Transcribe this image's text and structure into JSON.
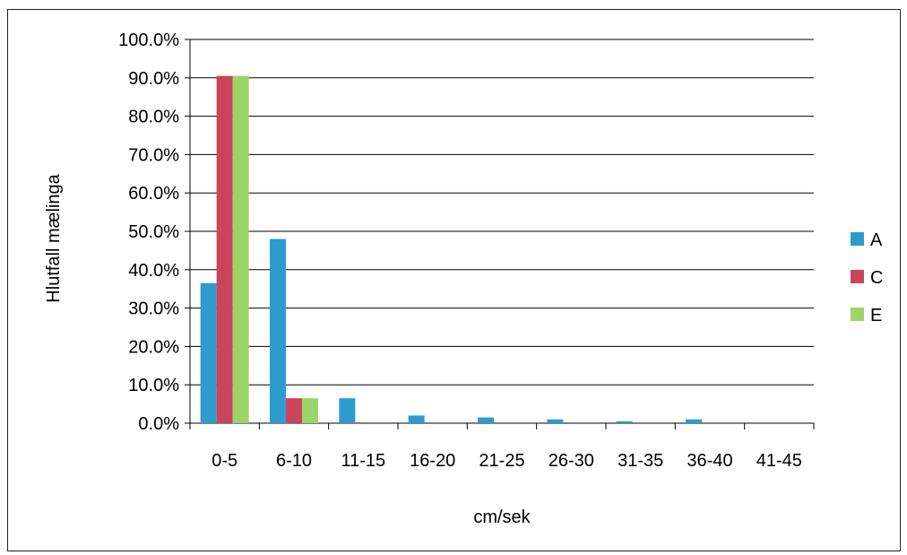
{
  "chart_data": {
    "type": "bar",
    "title": "",
    "xlabel": "cm/sek",
    "ylabel": "Hlutfall mælinga",
    "categories": [
      "0-5",
      "6-10",
      "11-15",
      "16-20",
      "21-25",
      "26-30",
      "31-35",
      "36-40",
      "41-45"
    ],
    "series": [
      {
        "name": "A",
        "color": "#2E9BD0",
        "values": [
          36.5,
          48.0,
          6.5,
          2.0,
          1.5,
          1.0,
          0.5,
          1.0,
          0.0
        ]
      },
      {
        "name": "C",
        "color": "#C8455A",
        "values": [
          90.5,
          6.5,
          0.0,
          0.0,
          0.0,
          0.0,
          0.0,
          0.0,
          0.0
        ]
      },
      {
        "name": "E",
        "color": "#9CD66A",
        "values": [
          90.5,
          6.5,
          0.0,
          0.0,
          0.0,
          0.0,
          0.0,
          0.0,
          0.0
        ]
      }
    ],
    "ylim": [
      0,
      100
    ],
    "yticks": [
      "0.0%",
      "10.0%",
      "20.0%",
      "30.0%",
      "40.0%",
      "50.0%",
      "60.0%",
      "70.0%",
      "80.0%",
      "90.0%",
      "100.0%"
    ],
    "grid": true,
    "legend_position": "right"
  }
}
